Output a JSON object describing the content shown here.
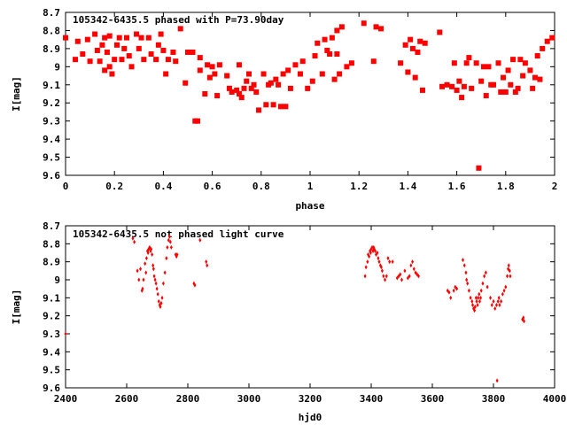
{
  "chart_data": [
    {
      "type": "scatter",
      "title": "105342-6435.5 phased with P=73.90day",
      "xlabel": "phase",
      "ylabel": "I[mag]",
      "xlim": [
        0,
        2
      ],
      "ylim": [
        8.7,
        9.6
      ],
      "y_inverted": true,
      "grid": false,
      "marker_color": "#ff0000",
      "xticks": [
        0,
        0.2,
        0.4,
        0.6,
        0.8,
        1,
        1.2,
        1.4,
        1.6,
        1.8,
        2
      ],
      "xtick_labels": [
        "0",
        "0.2",
        "0.4",
        "0.6",
        "0.8",
        "1",
        "1.2",
        "1.4",
        "1.6",
        "1.8",
        "2"
      ],
      "yticks": [
        8.7,
        8.8,
        8.9,
        9.0,
        9.1,
        9.2,
        9.3,
        9.4,
        9.5,
        9.6
      ],
      "ytick_labels": [
        "8.7",
        "8.8",
        "8.9",
        "9",
        "9.1",
        "9.2",
        "9.3",
        "9.4",
        "9.5",
        "9.6"
      ],
      "points": [
        [
          0.0,
          8.84
        ],
        [
          0.04,
          8.96
        ],
        [
          0.05,
          8.86
        ],
        [
          0.07,
          8.93
        ],
        [
          0.09,
          8.85
        ],
        [
          0.1,
          8.97
        ],
        [
          0.12,
          8.82
        ],
        [
          0.13,
          8.91
        ],
        [
          0.14,
          8.97
        ],
        [
          0.15,
          8.88
        ],
        [
          0.16,
          8.84
        ],
        [
          0.16,
          9.02
        ],
        [
          0.17,
          8.92
        ],
        [
          0.18,
          9.0
        ],
        [
          0.18,
          8.83
        ],
        [
          0.19,
          9.04
        ],
        [
          0.2,
          8.96
        ],
        [
          0.21,
          8.88
        ],
        [
          0.22,
          8.84
        ],
        [
          0.23,
          8.96
        ],
        [
          0.24,
          8.9
        ],
        [
          0.25,
          8.84
        ],
        [
          0.26,
          8.94
        ],
        [
          0.27,
          9.0
        ],
        [
          0.29,
          8.82
        ],
        [
          0.3,
          8.9
        ],
        [
          0.31,
          8.84
        ],
        [
          0.32,
          8.96
        ],
        [
          0.34,
          8.84
        ],
        [
          0.35,
          8.93
        ],
        [
          0.37,
          8.96
        ],
        [
          0.38,
          8.88
        ],
        [
          0.39,
          8.82
        ],
        [
          0.4,
          8.91
        ],
        [
          0.41,
          9.04
        ],
        [
          0.42,
          8.96
        ],
        [
          0.44,
          8.92
        ],
        [
          0.45,
          8.97
        ],
        [
          0.47,
          8.79
        ],
        [
          0.49,
          9.09
        ],
        [
          0.5,
          8.92
        ],
        [
          0.52,
          8.92
        ],
        [
          0.53,
          9.3
        ],
        [
          0.54,
          9.3
        ],
        [
          0.55,
          8.95
        ],
        [
          0.55,
          9.02
        ],
        [
          0.57,
          9.15
        ],
        [
          0.58,
          8.99
        ],
        [
          0.59,
          9.06
        ],
        [
          0.6,
          9.0
        ],
        [
          0.61,
          9.04
        ],
        [
          0.62,
          9.16
        ],
        [
          0.63,
          8.99
        ],
        [
          0.66,
          9.05
        ],
        [
          0.67,
          9.12
        ],
        [
          0.68,
          9.14
        ],
        [
          0.7,
          9.13
        ],
        [
          0.71,
          9.15
        ],
        [
          0.71,
          8.99
        ],
        [
          0.72,
          9.17
        ],
        [
          0.73,
          9.12
        ],
        [
          0.74,
          9.08
        ],
        [
          0.75,
          9.04
        ],
        [
          0.76,
          9.12
        ],
        [
          0.77,
          9.1
        ],
        [
          0.78,
          9.14
        ],
        [
          0.79,
          9.24
        ],
        [
          0.81,
          9.04
        ],
        [
          0.82,
          9.21
        ],
        [
          0.83,
          9.1
        ],
        [
          0.84,
          9.09
        ],
        [
          0.85,
          9.21
        ],
        [
          0.86,
          9.07
        ],
        [
          0.87,
          9.1
        ],
        [
          0.88,
          9.22
        ],
        [
          0.89,
          9.04
        ],
        [
          0.9,
          9.22
        ],
        [
          0.91,
          9.02
        ],
        [
          0.92,
          9.12
        ],
        [
          0.94,
          8.99
        ],
        [
          0.96,
          9.04
        ],
        [
          0.97,
          8.97
        ],
        [
          0.99,
          9.12
        ],
        [
          1.01,
          9.08
        ],
        [
          1.02,
          8.94
        ],
        [
          1.03,
          8.87
        ],
        [
          1.05,
          9.04
        ],
        [
          1.06,
          8.85
        ],
        [
          1.07,
          8.91
        ],
        [
          1.08,
          8.93
        ],
        [
          1.09,
          8.84
        ],
        [
          1.1,
          9.07
        ],
        [
          1.11,
          8.93
        ],
        [
          1.11,
          8.8
        ],
        [
          1.12,
          9.04
        ],
        [
          1.13,
          8.78
        ],
        [
          1.15,
          9.0
        ],
        [
          1.17,
          8.98
        ],
        [
          1.22,
          8.76
        ],
        [
          1.26,
          8.97
        ],
        [
          1.27,
          8.78
        ],
        [
          1.29,
          8.79
        ],
        [
          1.37,
          8.98
        ],
        [
          1.39,
          8.88
        ],
        [
          1.4,
          9.03
        ],
        [
          1.41,
          8.85
        ],
        [
          1.42,
          8.9
        ],
        [
          1.43,
          9.06
        ],
        [
          1.44,
          8.92
        ],
        [
          1.45,
          8.86
        ],
        [
          1.46,
          9.13
        ],
        [
          1.47,
          8.87
        ],
        [
          1.53,
          8.81
        ],
        [
          1.54,
          9.11
        ],
        [
          1.56,
          9.1
        ],
        [
          1.58,
          9.11
        ],
        [
          1.59,
          8.98
        ],
        [
          1.6,
          9.13
        ],
        [
          1.61,
          9.08
        ],
        [
          1.62,
          9.17
        ],
        [
          1.63,
          9.11
        ],
        [
          1.64,
          8.98
        ],
        [
          1.65,
          8.95
        ],
        [
          1.66,
          9.12
        ],
        [
          1.68,
          8.98
        ],
        [
          1.69,
          9.56
        ],
        [
          1.7,
          9.08
        ],
        [
          1.71,
          9.0
        ],
        [
          1.72,
          9.16
        ],
        [
          1.73,
          9.0
        ],
        [
          1.74,
          9.1
        ],
        [
          1.75,
          9.1
        ],
        [
          1.77,
          8.98
        ],
        [
          1.78,
          9.14
        ],
        [
          1.79,
          9.06
        ],
        [
          1.8,
          9.14
        ],
        [
          1.81,
          9.02
        ],
        [
          1.82,
          9.1
        ],
        [
          1.83,
          8.96
        ],
        [
          1.84,
          9.14
        ],
        [
          1.85,
          9.12
        ],
        [
          1.86,
          8.96
        ],
        [
          1.87,
          9.05
        ],
        [
          1.88,
          8.98
        ],
        [
          1.9,
          9.02
        ],
        [
          1.91,
          9.12
        ],
        [
          1.92,
          9.06
        ],
        [
          1.93,
          8.94
        ],
        [
          1.94,
          9.07
        ],
        [
          1.95,
          8.9
        ],
        [
          1.97,
          8.86
        ],
        [
          1.99,
          8.84
        ]
      ]
    },
    {
      "type": "scatter",
      "title": "105342-6435.5 not phased light curve",
      "xlabel": "hjd0",
      "ylabel": "I[mag]",
      "xlim": [
        2400,
        4000
      ],
      "ylim": [
        8.7,
        9.6
      ],
      "y_inverted": true,
      "grid": false,
      "marker_color": "#ff0000",
      "xticks": [
        2400,
        2600,
        2800,
        3000,
        3200,
        3400,
        3600,
        3800,
        4000
      ],
      "xtick_labels": [
        "2400",
        "2600",
        "2800",
        "3000",
        "3200",
        "3400",
        "3600",
        "3800",
        "4000"
      ],
      "yticks": [
        8.7,
        8.8,
        8.9,
        9.0,
        9.1,
        9.2,
        9.3,
        9.4,
        9.5,
        9.6
      ],
      "ytick_labels": [
        "8.7",
        "8.8",
        "8.9",
        "9",
        "9.1",
        "9.2",
        "9.3",
        "9.4",
        "9.5",
        "9.6"
      ],
      "points": [
        [
          2400,
          9.3
        ],
        [
          2620,
          8.77
        ],
        [
          2625,
          8.79
        ],
        [
          2635,
          8.95
        ],
        [
          2640,
          9.0
        ],
        [
          2645,
          8.94
        ],
        [
          2650,
          9.06
        ],
        [
          2652,
          9.05
        ],
        [
          2655,
          9.0
        ],
        [
          2660,
          8.91
        ],
        [
          2663,
          8.96
        ],
        [
          2665,
          8.88
        ],
        [
          2668,
          8.84
        ],
        [
          2670,
          8.85
        ],
        [
          2672,
          8.83
        ],
        [
          2675,
          8.82
        ],
        [
          2678,
          8.84
        ],
        [
          2680,
          8.83
        ],
        [
          2683,
          8.86
        ],
        [
          2686,
          8.92
        ],
        [
          2688,
          8.94
        ],
        [
          2690,
          8.98
        ],
        [
          2693,
          9.0
        ],
        [
          2696,
          9.02
        ],
        [
          2699,
          9.05
        ],
        [
          2702,
          9.08
        ],
        [
          2705,
          9.12
        ],
        [
          2708,
          9.14
        ],
        [
          2710,
          9.15
        ],
        [
          2713,
          9.13
        ],
        [
          2716,
          9.1
        ],
        [
          2720,
          9.02
        ],
        [
          2725,
          8.96
        ],
        [
          2730,
          8.88
        ],
        [
          2733,
          8.82
        ],
        [
          2737,
          8.78
        ],
        [
          2740,
          8.76
        ],
        [
          2743,
          8.79
        ],
        [
          2746,
          8.82
        ],
        [
          2760,
          8.86
        ],
        [
          2763,
          8.87
        ],
        [
          2765,
          8.86
        ],
        [
          2820,
          9.02
        ],
        [
          2823,
          9.03
        ],
        [
          2840,
          8.78
        ],
        [
          2860,
          8.9
        ],
        [
          2863,
          8.92
        ],
        [
          3380,
          8.98
        ],
        [
          3383,
          8.93
        ],
        [
          3388,
          8.9
        ],
        [
          3390,
          8.86
        ],
        [
          3393,
          8.87
        ],
        [
          3396,
          8.84
        ],
        [
          3398,
          8.85
        ],
        [
          3400,
          8.83
        ],
        [
          3403,
          8.82
        ],
        [
          3406,
          8.84
        ],
        [
          3408,
          8.82
        ],
        [
          3410,
          8.83
        ],
        [
          3413,
          8.84
        ],
        [
          3416,
          8.86
        ],
        [
          3420,
          8.85
        ],
        [
          3423,
          8.88
        ],
        [
          3426,
          8.9
        ],
        [
          3430,
          8.92
        ],
        [
          3433,
          8.93
        ],
        [
          3436,
          8.95
        ],
        [
          3440,
          8.98
        ],
        [
          3445,
          9.0
        ],
        [
          3450,
          8.98
        ],
        [
          3455,
          8.88
        ],
        [
          3460,
          8.9
        ],
        [
          3470,
          8.9
        ],
        [
          3485,
          8.99
        ],
        [
          3490,
          8.98
        ],
        [
          3495,
          8.97
        ],
        [
          3500,
          9.0
        ],
        [
          3510,
          8.95
        ],
        [
          3520,
          8.99
        ],
        [
          3525,
          8.98
        ],
        [
          3530,
          8.92
        ],
        [
          3535,
          8.9
        ],
        [
          3540,
          8.94
        ],
        [
          3545,
          8.96
        ],
        [
          3550,
          8.97
        ],
        [
          3555,
          8.98
        ],
        [
          3650,
          9.06
        ],
        [
          3655,
          9.07
        ],
        [
          3660,
          9.1
        ],
        [
          3670,
          9.06
        ],
        [
          3675,
          9.04
        ],
        [
          3680,
          9.05
        ],
        [
          3700,
          8.89
        ],
        [
          3705,
          8.92
        ],
        [
          3710,
          8.96
        ],
        [
          3712,
          9.0
        ],
        [
          3715,
          9.02
        ],
        [
          3720,
          9.06
        ],
        [
          3725,
          9.1
        ],
        [
          3730,
          9.12
        ],
        [
          3732,
          9.14
        ],
        [
          3735,
          9.16
        ],
        [
          3738,
          9.17
        ],
        [
          3740,
          9.15
        ],
        [
          3743,
          9.1
        ],
        [
          3745,
          9.12
        ],
        [
          3748,
          9.14
        ],
        [
          3750,
          9.1
        ],
        [
          3753,
          9.08
        ],
        [
          3755,
          9.12
        ],
        [
          3758,
          9.1
        ],
        [
          3760,
          9.06
        ],
        [
          3765,
          9.02
        ],
        [
          3770,
          8.98
        ],
        [
          3775,
          8.96
        ],
        [
          3780,
          9.04
        ],
        [
          3790,
          9.1
        ],
        [
          3795,
          9.14
        ],
        [
          3800,
          9.12
        ],
        [
          3805,
          9.16
        ],
        [
          3810,
          9.14
        ],
        [
          3812,
          9.56
        ],
        [
          3815,
          9.12
        ],
        [
          3818,
          9.1
        ],
        [
          3820,
          9.14
        ],
        [
          3825,
          9.12
        ],
        [
          3830,
          9.08
        ],
        [
          3835,
          9.06
        ],
        [
          3840,
          9.04
        ],
        [
          3845,
          8.98
        ],
        [
          3848,
          8.94
        ],
        [
          3850,
          8.92
        ],
        [
          3853,
          8.95
        ],
        [
          3855,
          8.98
        ],
        [
          3895,
          9.22
        ],
        [
          3898,
          9.21
        ],
        [
          3900,
          9.23
        ]
      ]
    }
  ]
}
